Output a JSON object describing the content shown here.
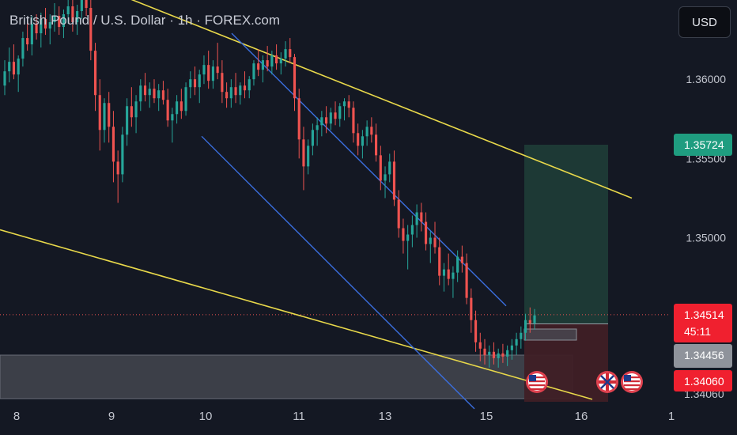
{
  "header": {
    "title": "British Pound / U.S. Dollar · 1h · FOREX.com",
    "currency_button": "USD"
  },
  "colors": {
    "background": "#141823",
    "bull": "#26a69a",
    "bear": "#ef5350",
    "trendline": "#e8d84a",
    "channel": "#3b6fe0",
    "target_zone": "#1d3b37",
    "stop_zone": "#3f1f26"
  },
  "chart_data": {
    "type": "candlestick",
    "instrument": "GBPUSD",
    "timeframe": "1h",
    "x_ticks": [
      "8",
      "9",
      "10",
      "11",
      "13",
      "15",
      "16",
      "1"
    ],
    "y_ticks": [
      {
        "value": 1.36,
        "label": "1.36000"
      },
      {
        "value": 1.355,
        "label": "1.35500"
      },
      {
        "value": 1.35,
        "label": "1.35000"
      }
    ],
    "ylim": [
      1.3372,
      1.365
    ],
    "price_tags": {
      "target": {
        "value": 1.35724,
        "label": "1.35724"
      },
      "current": {
        "value": 1.34514,
        "label": "1.34514",
        "countdown": "45:11"
      },
      "entry": {
        "value": 1.34456,
        "label": "1.34456"
      },
      "stop": {
        "value": 1.3406,
        "label": "1.34060"
      },
      "partial_label": "1.34060"
    },
    "trendlines": [
      {
        "name": "upper-yellow",
        "from": {
          "t": 92,
          "p": 1.3665
        },
        "to": {
          "t": 799,
          "p": 1.3525
        }
      },
      {
        "name": "lower-yellow",
        "from": {
          "t": 0,
          "p": 1.3505
        },
        "to": {
          "t": 749,
          "p": 1.3398
        }
      },
      {
        "name": "channel-upper",
        "from": {
          "t": 293,
          "p": 1.3629
        },
        "to": {
          "t": 640,
          "p": 1.3457
        }
      },
      {
        "name": "channel-lower",
        "from": {
          "t": 255,
          "p": 1.3564
        },
        "to": {
          "t": 600,
          "p": 1.3392
        }
      }
    ],
    "candles": [
      [
        1.3596,
        1.3612,
        1.359,
        1.3605
      ],
      [
        1.3605,
        1.362,
        1.3598,
        1.3611
      ],
      [
        1.3611,
        1.3622,
        1.36,
        1.3603
      ],
      [
        1.3603,
        1.3615,
        1.3592,
        1.3613
      ],
      [
        1.3613,
        1.363,
        1.3608,
        1.3626
      ],
      [
        1.3626,
        1.3638,
        1.3618,
        1.3622
      ],
      [
        1.3622,
        1.364,
        1.3615,
        1.3635
      ],
      [
        1.3635,
        1.3641,
        1.3625,
        1.3629
      ],
      [
        1.3629,
        1.3642,
        1.362,
        1.3638
      ],
      [
        1.3638,
        1.3645,
        1.3628,
        1.3632
      ],
      [
        1.3632,
        1.3641,
        1.3622,
        1.3636
      ],
      [
        1.3636,
        1.3648,
        1.363,
        1.364
      ],
      [
        1.364,
        1.3646,
        1.3628,
        1.3633
      ],
      [
        1.3633,
        1.3644,
        1.3626,
        1.3641
      ],
      [
        1.3641,
        1.3652,
        1.3635,
        1.3646
      ],
      [
        1.3646,
        1.3654,
        1.363,
        1.3636
      ],
      [
        1.3636,
        1.3647,
        1.3628,
        1.3643
      ],
      [
        1.3643,
        1.366,
        1.3638,
        1.3654
      ],
      [
        1.3654,
        1.3664,
        1.364,
        1.3645
      ],
      [
        1.3645,
        1.3654,
        1.3612,
        1.3618
      ],
      [
        1.3618,
        1.3623,
        1.358,
        1.359
      ],
      [
        1.359,
        1.36,
        1.3555,
        1.3568
      ],
      [
        1.3568,
        1.3588,
        1.356,
        1.3585
      ],
      [
        1.3585,
        1.3592,
        1.356,
        1.357
      ],
      [
        1.357,
        1.358,
        1.3535,
        1.3548
      ],
      [
        1.3548,
        1.3555,
        1.3522,
        1.354
      ],
      [
        1.354,
        1.357,
        1.3535,
        1.3565
      ],
      [
        1.3565,
        1.3588,
        1.3558,
        1.3583
      ],
      [
        1.3583,
        1.3595,
        1.357,
        1.3576
      ],
      [
        1.3576,
        1.359,
        1.3566,
        1.3586
      ],
      [
        1.3586,
        1.36,
        1.358,
        1.3596
      ],
      [
        1.3596,
        1.3604,
        1.3586,
        1.359
      ],
      [
        1.359,
        1.3598,
        1.3582,
        1.3594
      ],
      [
        1.3594,
        1.36,
        1.3585,
        1.3588
      ],
      [
        1.3588,
        1.3597,
        1.358,
        1.3593
      ],
      [
        1.3593,
        1.3599,
        1.3584,
        1.3587
      ],
      [
        1.3587,
        1.3594,
        1.357,
        1.3574
      ],
      [
        1.3574,
        1.3582,
        1.356,
        1.3578
      ],
      [
        1.3578,
        1.359,
        1.3572,
        1.3586
      ],
      [
        1.3586,
        1.3594,
        1.3575,
        1.358
      ],
      [
        1.358,
        1.3598,
        1.3577,
        1.3595
      ],
      [
        1.3595,
        1.3605,
        1.3588,
        1.36
      ],
      [
        1.36,
        1.3608,
        1.359,
        1.3595
      ],
      [
        1.3595,
        1.3606,
        1.3585,
        1.3603
      ],
      [
        1.3603,
        1.3615,
        1.3597,
        1.3609
      ],
      [
        1.3609,
        1.3618,
        1.3594,
        1.3599
      ],
      [
        1.3599,
        1.3612,
        1.3594,
        1.3608
      ],
      [
        1.3608,
        1.3623,
        1.36,
        1.3604
      ],
      [
        1.3604,
        1.3612,
        1.3585,
        1.3592
      ],
      [
        1.3592,
        1.3598,
        1.3582,
        1.3588
      ],
      [
        1.3588,
        1.36,
        1.3582,
        1.3595
      ],
      [
        1.3595,
        1.3604,
        1.3585,
        1.359
      ],
      [
        1.359,
        1.3598,
        1.3584,
        1.3596
      ],
      [
        1.3596,
        1.3605,
        1.3588,
        1.3593
      ],
      [
        1.3593,
        1.3602,
        1.3588,
        1.36
      ],
      [
        1.36,
        1.3612,
        1.3596,
        1.361
      ],
      [
        1.361,
        1.3619,
        1.3602,
        1.3606
      ],
      [
        1.3606,
        1.3615,
        1.3598,
        1.3612
      ],
      [
        1.3612,
        1.3621,
        1.3605,
        1.3608
      ],
      [
        1.3608,
        1.3618,
        1.3603,
        1.3615
      ],
      [
        1.3615,
        1.3622,
        1.3606,
        1.361
      ],
      [
        1.361,
        1.3617,
        1.3603,
        1.3613
      ],
      [
        1.3613,
        1.3624,
        1.3608,
        1.3619
      ],
      [
        1.3619,
        1.3626,
        1.361,
        1.3614
      ],
      [
        1.3614,
        1.3616,
        1.358,
        1.3588
      ],
      [
        1.3588,
        1.3594,
        1.355,
        1.3562
      ],
      [
        1.3562,
        1.357,
        1.353,
        1.3545
      ],
      [
        1.3545,
        1.3562,
        1.354,
        1.3558
      ],
      [
        1.3558,
        1.3572,
        1.3552,
        1.3568
      ],
      [
        1.3568,
        1.3576,
        1.3558,
        1.3571
      ],
      [
        1.3571,
        1.358,
        1.3564,
        1.3576
      ],
      [
        1.3576,
        1.3583,
        1.3566,
        1.3572
      ],
      [
        1.3572,
        1.3582,
        1.3568,
        1.3579
      ],
      [
        1.3579,
        1.3586,
        1.3571,
        1.3575
      ],
      [
        1.3575,
        1.3585,
        1.357,
        1.3583
      ],
      [
        1.3583,
        1.3588,
        1.3574,
        1.3586
      ],
      [
        1.3586,
        1.359,
        1.3576,
        1.3582
      ],
      [
        1.3582,
        1.3586,
        1.356,
        1.3566
      ],
      [
        1.3566,
        1.3572,
        1.3552,
        1.3558
      ],
      [
        1.3558,
        1.3568,
        1.355,
        1.3564
      ],
      [
        1.3564,
        1.3574,
        1.3558,
        1.357
      ],
      [
        1.357,
        1.3576,
        1.356,
        1.3565
      ],
      [
        1.3565,
        1.3572,
        1.3548,
        1.3552
      ],
      [
        1.3552,
        1.3558,
        1.353,
        1.3536
      ],
      [
        1.3536,
        1.3545,
        1.3525,
        1.354
      ],
      [
        1.354,
        1.3553,
        1.3535,
        1.3548
      ],
      [
        1.3548,
        1.3555,
        1.352,
        1.3524
      ],
      [
        1.3524,
        1.353,
        1.35,
        1.3506
      ],
      [
        1.3506,
        1.3512,
        1.349,
        1.3498
      ],
      [
        1.3498,
        1.3508,
        1.348,
        1.3502
      ],
      [
        1.3502,
        1.3514,
        1.3494,
        1.3508
      ],
      [
        1.3508,
        1.3521,
        1.35,
        1.3516
      ],
      [
        1.3516,
        1.3522,
        1.3504,
        1.351
      ],
      [
        1.351,
        1.3516,
        1.3492,
        1.3496
      ],
      [
        1.3496,
        1.3504,
        1.3484,
        1.35
      ],
      [
        1.35,
        1.351,
        1.349,
        1.3494
      ],
      [
        1.3494,
        1.35,
        1.347,
        1.3476
      ],
      [
        1.3476,
        1.3484,
        1.3466,
        1.348
      ],
      [
        1.348,
        1.349,
        1.347,
        1.3474
      ],
      [
        1.3474,
        1.3482,
        1.3462,
        1.3478
      ],
      [
        1.3478,
        1.3492,
        1.3472,
        1.3488
      ],
      [
        1.3488,
        1.3495,
        1.3478,
        1.3484
      ],
      [
        1.3484,
        1.349,
        1.3458,
        1.3462
      ],
      [
        1.3462,
        1.3468,
        1.344,
        1.3448
      ],
      [
        1.3448,
        1.3454,
        1.3428,
        1.3434
      ],
      [
        1.3434,
        1.344,
        1.3422,
        1.343
      ],
      [
        1.343,
        1.3436,
        1.342,
        1.3426
      ],
      [
        1.3426,
        1.3432,
        1.3418,
        1.3428
      ],
      [
        1.3428,
        1.3434,
        1.342,
        1.3424
      ],
      [
        1.3424,
        1.343,
        1.3418,
        1.3427
      ],
      [
        1.3427,
        1.3433,
        1.3421,
        1.3425
      ],
      [
        1.3425,
        1.3432,
        1.3419,
        1.3429
      ],
      [
        1.3429,
        1.3436,
        1.3423,
        1.3432
      ],
      [
        1.3432,
        1.344,
        1.3426,
        1.3436
      ],
      [
        1.3436,
        1.3444,
        1.343,
        1.344
      ],
      [
        1.344,
        1.3452,
        1.3435,
        1.3448
      ],
      [
        1.3448,
        1.3456,
        1.344,
        1.3446
      ],
      [
        1.3446,
        1.3455,
        1.3442,
        1.3451
      ]
    ],
    "markers": [
      {
        "name": "event-us",
        "t": 679
      },
      {
        "name": "event-gb",
        "t": 768
      },
      {
        "name": "event-us",
        "t": 799
      }
    ]
  }
}
